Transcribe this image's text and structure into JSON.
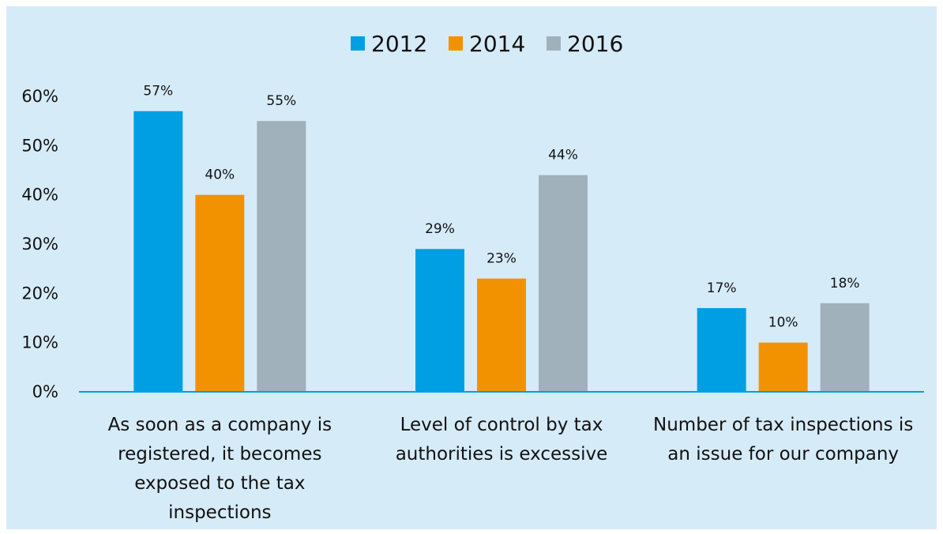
{
  "chart_data": {
    "type": "bar",
    "title": "",
    "xlabel": "",
    "ylabel": "",
    "ylim": [
      0,
      60
    ],
    "yticks": [
      "0%",
      "10%",
      "20%",
      "30%",
      "40%",
      "50%",
      "60%"
    ],
    "ytick_values": [
      0,
      10,
      20,
      30,
      40,
      50,
      60
    ],
    "grid": false,
    "legend_position": "top-center",
    "categories": [
      [
        "As soon as a company is",
        "registered, it becomes",
        "exposed to the tax",
        "inspections"
      ],
      [
        "Level of control by tax",
        "authorities is excessive"
      ],
      [
        "Number of tax inspections is",
        "an issue for our company"
      ]
    ],
    "series": [
      {
        "name": "2012",
        "color": "#009fe3",
        "values": [
          57,
          29,
          17
        ],
        "labels": [
          "57%",
          "29%",
          "17%"
        ]
      },
      {
        "name": "2014",
        "color": "#f39200",
        "values": [
          40,
          23,
          10
        ],
        "labels": [
          "40%",
          "23%",
          "10%"
        ]
      },
      {
        "name": "2016",
        "color": "#a1b1bb",
        "values": [
          55,
          44,
          18
        ],
        "labels": [
          "55%",
          "44%",
          "18%"
        ]
      }
    ],
    "axis_color": "#00a0e3"
  }
}
